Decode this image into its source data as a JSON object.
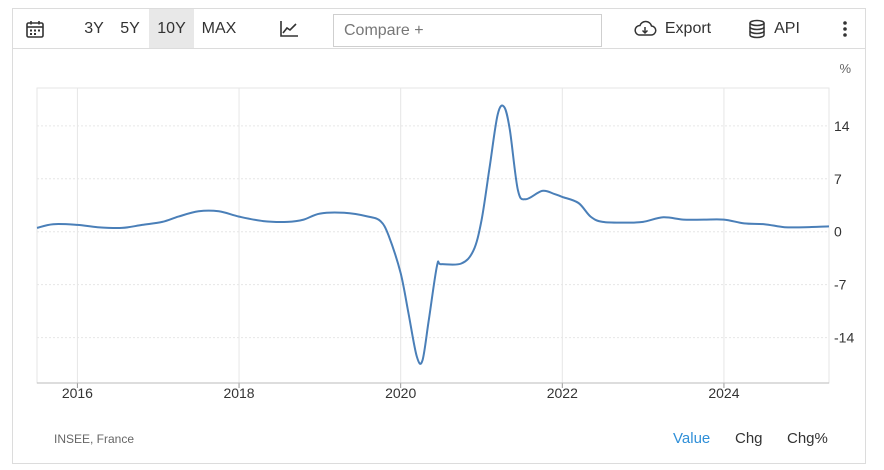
{
  "toolbar": {
    "calendar_icon": "calendar-icon",
    "ranges": [
      "3Y",
      "5Y",
      "10Y",
      "MAX"
    ],
    "active_range": "10Y",
    "chart_type_icon": "line-chart-icon",
    "compare_placeholder": "Compare +",
    "export_label": "Export",
    "export_icon": "cloud-download-icon",
    "api_label": "API",
    "api_icon": "database-icon",
    "more_icon": "vertical-dots-icon"
  },
  "unit_label": "%",
  "source": "INSEE, France",
  "views": [
    "Value",
    "Chg",
    "Chg%"
  ],
  "active_view": "Value",
  "colors": {
    "line": "#4a7fb8",
    "accent": "#2f8fd8",
    "grid": "#e6e6e6",
    "active_range_bg": "#e8e8e8"
  },
  "chart_data": {
    "type": "line",
    "title": "",
    "xlabel": "",
    "ylabel": "%",
    "xlim": [
      2015.5,
      2025.3
    ],
    "ylim": [
      -20,
      19
    ],
    "x_ticks": [
      2016,
      2018,
      2020,
      2022,
      2024
    ],
    "y_ticks": [
      14,
      7,
      0,
      -7,
      -14
    ],
    "grid": true,
    "legend": "none",
    "series": [
      {
        "x": [
          2015.5,
          2015.7,
          2016.0,
          2016.25,
          2016.55,
          2016.8,
          2017.05,
          2017.25,
          2017.5,
          2017.75,
          2018.0,
          2018.3,
          2018.6,
          2018.8,
          2019.0,
          2019.3,
          2019.6,
          2019.75,
          2019.85,
          2020.0,
          2020.1,
          2020.2,
          2020.27,
          2020.35,
          2020.45,
          2020.5,
          2020.75,
          2020.9,
          2021.0,
          2021.1,
          2021.2,
          2021.28,
          2021.35,
          2021.45,
          2021.55,
          2021.75,
          2021.9,
          2022.0,
          2022.2,
          2022.35,
          2022.5,
          2022.8,
          2023.0,
          2023.25,
          2023.5,
          2023.75,
          2024.0,
          2024.25,
          2024.5,
          2024.75,
          2025.0,
          2025.3
        ],
        "values": [
          0.5,
          1.0,
          0.9,
          0.6,
          0.5,
          0.9,
          1.3,
          2.0,
          2.7,
          2.7,
          2.0,
          1.4,
          1.3,
          1.6,
          2.4,
          2.5,
          2.0,
          1.4,
          -0.5,
          -5.5,
          -11.0,
          -16.5,
          -17.0,
          -11.5,
          -4.5,
          -4.3,
          -4.2,
          -2.5,
          1.5,
          8.5,
          15.5,
          16.5,
          13.5,
          5.5,
          4.3,
          5.4,
          5.0,
          4.6,
          3.8,
          2.0,
          1.3,
          1.2,
          1.3,
          1.9,
          1.6,
          1.6,
          1.6,
          1.1,
          1.0,
          0.6,
          0.6,
          0.7
        ]
      }
    ]
  }
}
